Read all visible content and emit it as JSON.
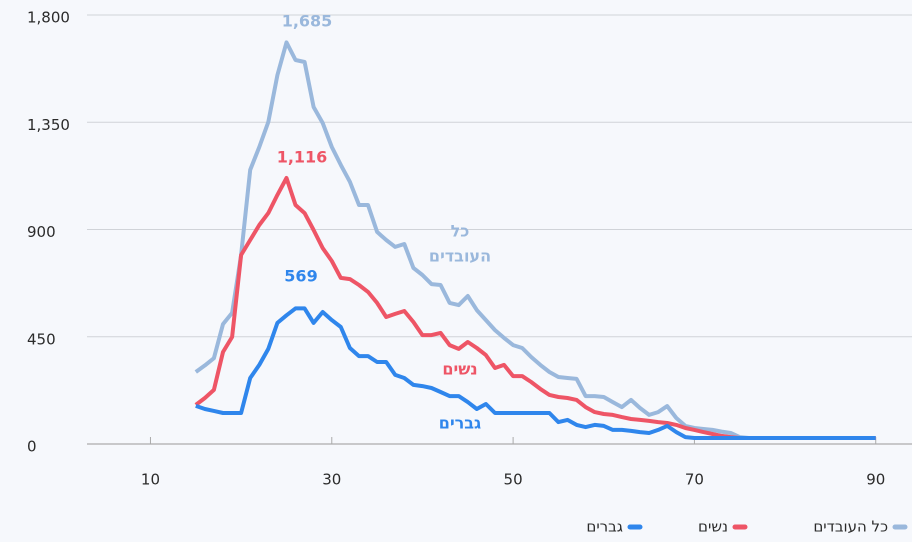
{
  "chart_data": {
    "type": "line",
    "x": [
      15,
      16,
      17,
      18,
      19,
      20,
      21,
      22,
      23,
      24,
      25,
      26,
      27,
      28,
      29,
      30,
      31,
      32,
      33,
      34,
      35,
      36,
      37,
      38,
      39,
      40,
      41,
      42,
      43,
      44,
      45,
      46,
      47,
      48,
      49,
      50,
      51,
      52,
      53,
      54,
      55,
      56,
      57,
      58,
      59,
      60,
      61,
      62,
      63,
      64,
      65,
      66,
      67,
      68,
      69,
      70,
      71,
      72,
      73,
      74,
      75,
      76,
      77,
      78,
      79,
      80,
      81,
      82,
      83,
      84,
      85,
      86,
      87,
      88,
      89,
      90
    ],
    "series": [
      {
        "name": "כל העובדים",
        "color": "#9ab8dc",
        "values": [
          302,
          330,
          360,
          503,
          550,
          793,
          1150,
          1246,
          1351,
          1548,
          1685,
          1611,
          1603,
          1414,
          1347,
          1246,
          1171,
          1100,
          1003,
          1003,
          890,
          856,
          827,
          839,
          739,
          709,
          671,
          667,
          592,
          583,
          621,
          562,
          520,
          478,
          445,
          415,
          403,
          365,
          332,
          302,
          281,
          277,
          273,
          201,
          201,
          197,
          176,
          155,
          185,
          151,
          122,
          134,
          159,
          109,
          76,
          67,
          63,
          59,
          52,
          46,
          29,
          25,
          25,
          25,
          25,
          25,
          25,
          25,
          25,
          25,
          25,
          25,
          25,
          25,
          25,
          25
        ]
      },
      {
        "name": "נשים",
        "color": "#ee5566",
        "values": [
          164,
          193,
          227,
          386,
          449,
          793,
          856,
          919,
          969,
          1045,
          1116,
          1003,
          969,
          898,
          822,
          768,
          697,
          692,
          667,
          638,
          592,
          533,
          546,
          558,
          512,
          457,
          457,
          466,
          415,
          399,
          428,
          403,
          373,
          319,
          332,
          285,
          285,
          260,
          231,
          206,
          197,
          193,
          185,
          155,
          134,
          126,
          122,
          113,
          105,
          101,
          97,
          92,
          88,
          80,
          67,
          59,
          50,
          42,
          34,
          29,
          25,
          25,
          25,
          25,
          25,
          25,
          25,
          25,
          25,
          25,
          25,
          25,
          25,
          25,
          25,
          25
        ]
      },
      {
        "name": "גברים",
        "color": "#2f86ec",
        "values": [
          160,
          147,
          139,
          130,
          130,
          130,
          277,
          332,
          399,
          508,
          540,
          569,
          569,
          508,
          554,
          520,
          491,
          403,
          369,
          369,
          344,
          344,
          290,
          277,
          248,
          243,
          235,
          218,
          201,
          201,
          176,
          147,
          168,
          130,
          130,
          130,
          130,
          130,
          130,
          130,
          92,
          101,
          80,
          71,
          80,
          76,
          59,
          59,
          55,
          50,
          46,
          59,
          76,
          50,
          29,
          25,
          25,
          25,
          25,
          25,
          25,
          25,
          25,
          25,
          25,
          25,
          25,
          25,
          25,
          25,
          25,
          25,
          25,
          25,
          25,
          25
        ]
      }
    ],
    "annotations": [
      {
        "text": "1,685",
        "color": "#9ab8dc"
      },
      {
        "text": "1,116",
        "color": "#ee5566"
      },
      {
        "text": "569",
        "color": "#2f86ec"
      },
      {
        "text": "כל",
        "color": "#9ab8dc"
      },
      {
        "text": "העובדים",
        "color": "#9ab8dc"
      },
      {
        "text": "נשים",
        "color": "#ee5566"
      },
      {
        "text": "גברים",
        "color": "#2f86ec"
      }
    ],
    "xlim": [
      3,
      94
    ],
    "xticks": [
      10,
      30,
      50,
      70,
      90
    ],
    "ylim": [
      0,
      1800
    ],
    "yticks": [
      0,
      {
        "value": 450,
        "label": "450"
      },
      {
        "value": 900,
        "label": "900"
      },
      {
        "value": 1350,
        "label": "1,350"
      },
      {
        "value": 1800,
        "label": "1,800"
      }
    ],
    "grid": true
  }
}
